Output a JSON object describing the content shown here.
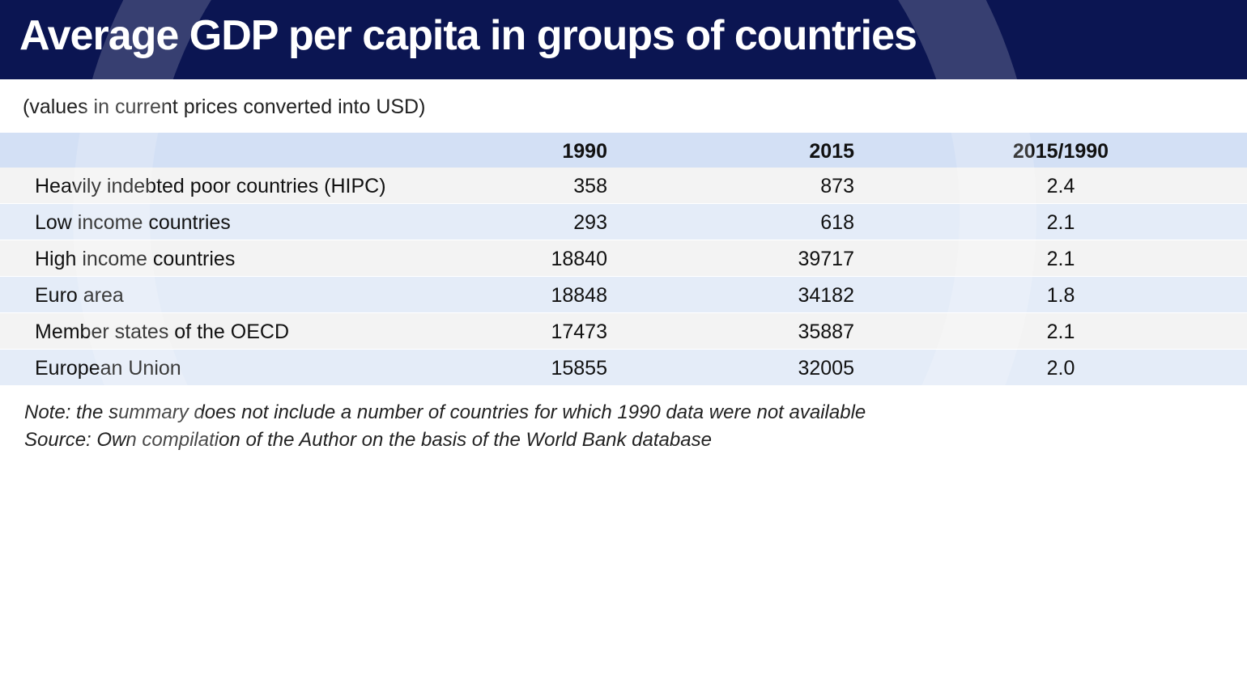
{
  "title": "Average GDP per capita in groups of countries",
  "subtitle": "(values in current prices converted into USD)",
  "chart_data": {
    "type": "table",
    "title": "Average GDP per capita in groups of countries",
    "columns": [
      "",
      "1990",
      "2015",
      "2015/1990"
    ],
    "rows": [
      [
        "Heavily indebted poor countries (HIPC)",
        "358",
        "873",
        "2.4"
      ],
      [
        "Low income countries",
        "293",
        "618",
        "2.1"
      ],
      [
        "High income countries",
        "18840",
        "39717",
        "2.1"
      ],
      [
        "Euro area",
        "18848",
        "34182",
        "1.8"
      ],
      [
        "Member states of the OECD",
        "17473",
        "35887",
        "2.1"
      ],
      [
        "European Union",
        "15855",
        "32005",
        "2.0"
      ]
    ]
  },
  "note": "Note: the summary does not include a number of countries for which 1990 data were not available",
  "source": "Source: Own compilation of the Author on the basis of the World Bank database",
  "colors": {
    "title_bg": "#0b1552",
    "header_bg": "#d3e0f5",
    "row_light": "#f3f3f3",
    "row_blue": "#e4ecf8"
  }
}
